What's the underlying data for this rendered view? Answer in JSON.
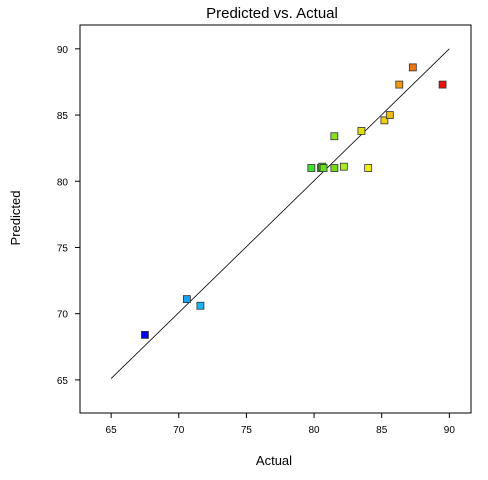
{
  "chart_data": {
    "type": "scatter",
    "title": "Predicted vs. Actual",
    "xlabel": "Actual",
    "ylabel": "Predicted",
    "xlim": [
      62.7,
      91.6
    ],
    "ylim": [
      62.5,
      91.8
    ],
    "xticks": [
      65,
      70,
      75,
      80,
      85,
      90
    ],
    "yticks": [
      65,
      70,
      75,
      80,
      85,
      90
    ],
    "grid": false,
    "reference_line": {
      "x": [
        65,
        90
      ],
      "y": [
        65.1,
        90.0
      ]
    },
    "points": [
      {
        "x": 67.5,
        "y": 68.4,
        "color": "#0000ee"
      },
      {
        "x": 70.6,
        "y": 71.1,
        "color": "#1aa0ee"
      },
      {
        "x": 71.6,
        "y": 70.6,
        "color": "#1ab5ee"
      },
      {
        "x": 79.8,
        "y": 81.0,
        "color": "#44dd33"
      },
      {
        "x": 80.5,
        "y": 81.0,
        "color": "#55dd22"
      },
      {
        "x": 80.6,
        "y": 81.1,
        "color": "#55dd22"
      },
      {
        "x": 80.7,
        "y": 81.0,
        "color": "#66dd22"
      },
      {
        "x": 81.5,
        "y": 81.0,
        "color": "#77dd11"
      },
      {
        "x": 81.5,
        "y": 83.4,
        "color": "#88dd22"
      },
      {
        "x": 82.2,
        "y": 81.1,
        "color": "#aaee22"
      },
      {
        "x": 83.5,
        "y": 83.8,
        "color": "#dddd11"
      },
      {
        "x": 84.0,
        "y": 81.0,
        "color": "#eeee11"
      },
      {
        "x": 85.2,
        "y": 84.6,
        "color": "#eecc11"
      },
      {
        "x": 85.6,
        "y": 85.0,
        "color": "#eebb11"
      },
      {
        "x": 86.3,
        "y": 87.3,
        "color": "#ee9911"
      },
      {
        "x": 87.3,
        "y": 88.6,
        "color": "#ee7711"
      },
      {
        "x": 89.5,
        "y": 87.3,
        "color": "#ee1111"
      }
    ]
  }
}
